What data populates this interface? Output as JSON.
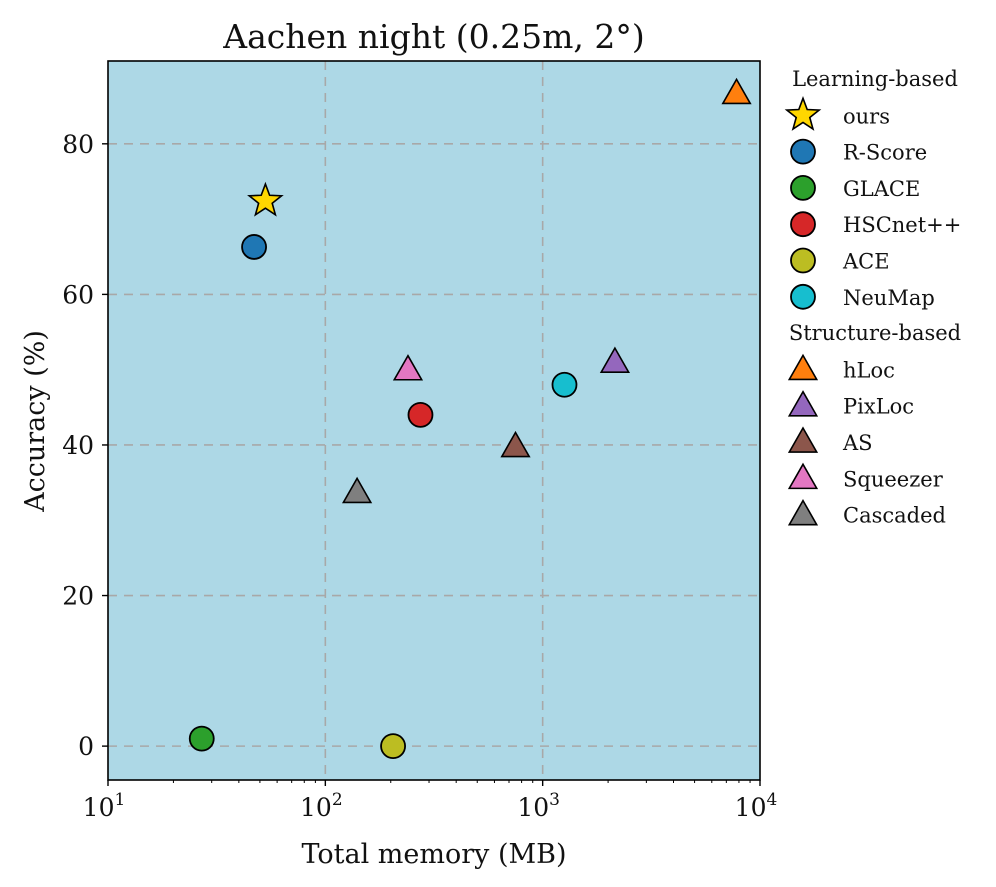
{
  "chart_data": {
    "type": "scatter",
    "title": "Aachen night (0.25m, 2°)",
    "xlabel": "Total memory (MB)",
    "ylabel": "Accuracy (%)",
    "xscale": "log",
    "xlim": [
      10,
      10000
    ],
    "ylim": [
      -4.5,
      91
    ],
    "grid": true,
    "background_color": "#add8e6",
    "x_ticks": [
      {
        "base": "10",
        "exp": "1",
        "value": 10
      },
      {
        "base": "10",
        "exp": "2",
        "value": 100
      },
      {
        "base": "10",
        "exp": "3",
        "value": 1000
      },
      {
        "base": "10",
        "exp": "4",
        "value": 10000
      }
    ],
    "y_ticks": [
      {
        "label": "0",
        "value": 0
      },
      {
        "label": "20",
        "value": 20
      },
      {
        "label": "40",
        "value": 40
      },
      {
        "label": "60",
        "value": 60
      },
      {
        "label": "80",
        "value": 80
      }
    ],
    "legend_position": "outside-right",
    "groups": [
      {
        "heading": "Learning-based",
        "series": [
          {
            "name": "ours",
            "marker": "star",
            "color": "#ffd700",
            "x": 53,
            "y": 72.4
          },
          {
            "name": "R-Score",
            "marker": "circle",
            "color": "#1f77b4",
            "x": 47,
            "y": 66.3
          },
          {
            "name": "GLACE",
            "marker": "circle",
            "color": "#2ca02c",
            "x": 27,
            "y": 1.0
          },
          {
            "name": "HSCnet++",
            "marker": "circle",
            "color": "#d62728",
            "x": 274,
            "y": 44.0
          },
          {
            "name": "ACE",
            "marker": "circle",
            "color": "#bcbd22",
            "x": 205,
            "y": 0.0
          },
          {
            "name": "NeuMap",
            "marker": "circle",
            "color": "#17becf",
            "x": 1260,
            "y": 48.0
          }
        ]
      },
      {
        "heading": "Structure-based",
        "series": [
          {
            "name": "hLoc",
            "marker": "triangle",
            "color": "#ff7f0e",
            "x": 7800,
            "y": 86.7
          },
          {
            "name": "PixLoc",
            "marker": "triangle",
            "color": "#9467bd",
            "x": 2150,
            "y": 51.0
          },
          {
            "name": "AS",
            "marker": "triangle",
            "color": "#8c564b",
            "x": 750,
            "y": 39.8
          },
          {
            "name": "Squeezer",
            "marker": "triangle",
            "color": "#e377c2",
            "x": 240,
            "y": 50.0
          },
          {
            "name": "Cascaded",
            "marker": "triangle",
            "color": "#7f7f7f",
            "x": 140,
            "y": 33.7
          }
        ]
      }
    ]
  }
}
